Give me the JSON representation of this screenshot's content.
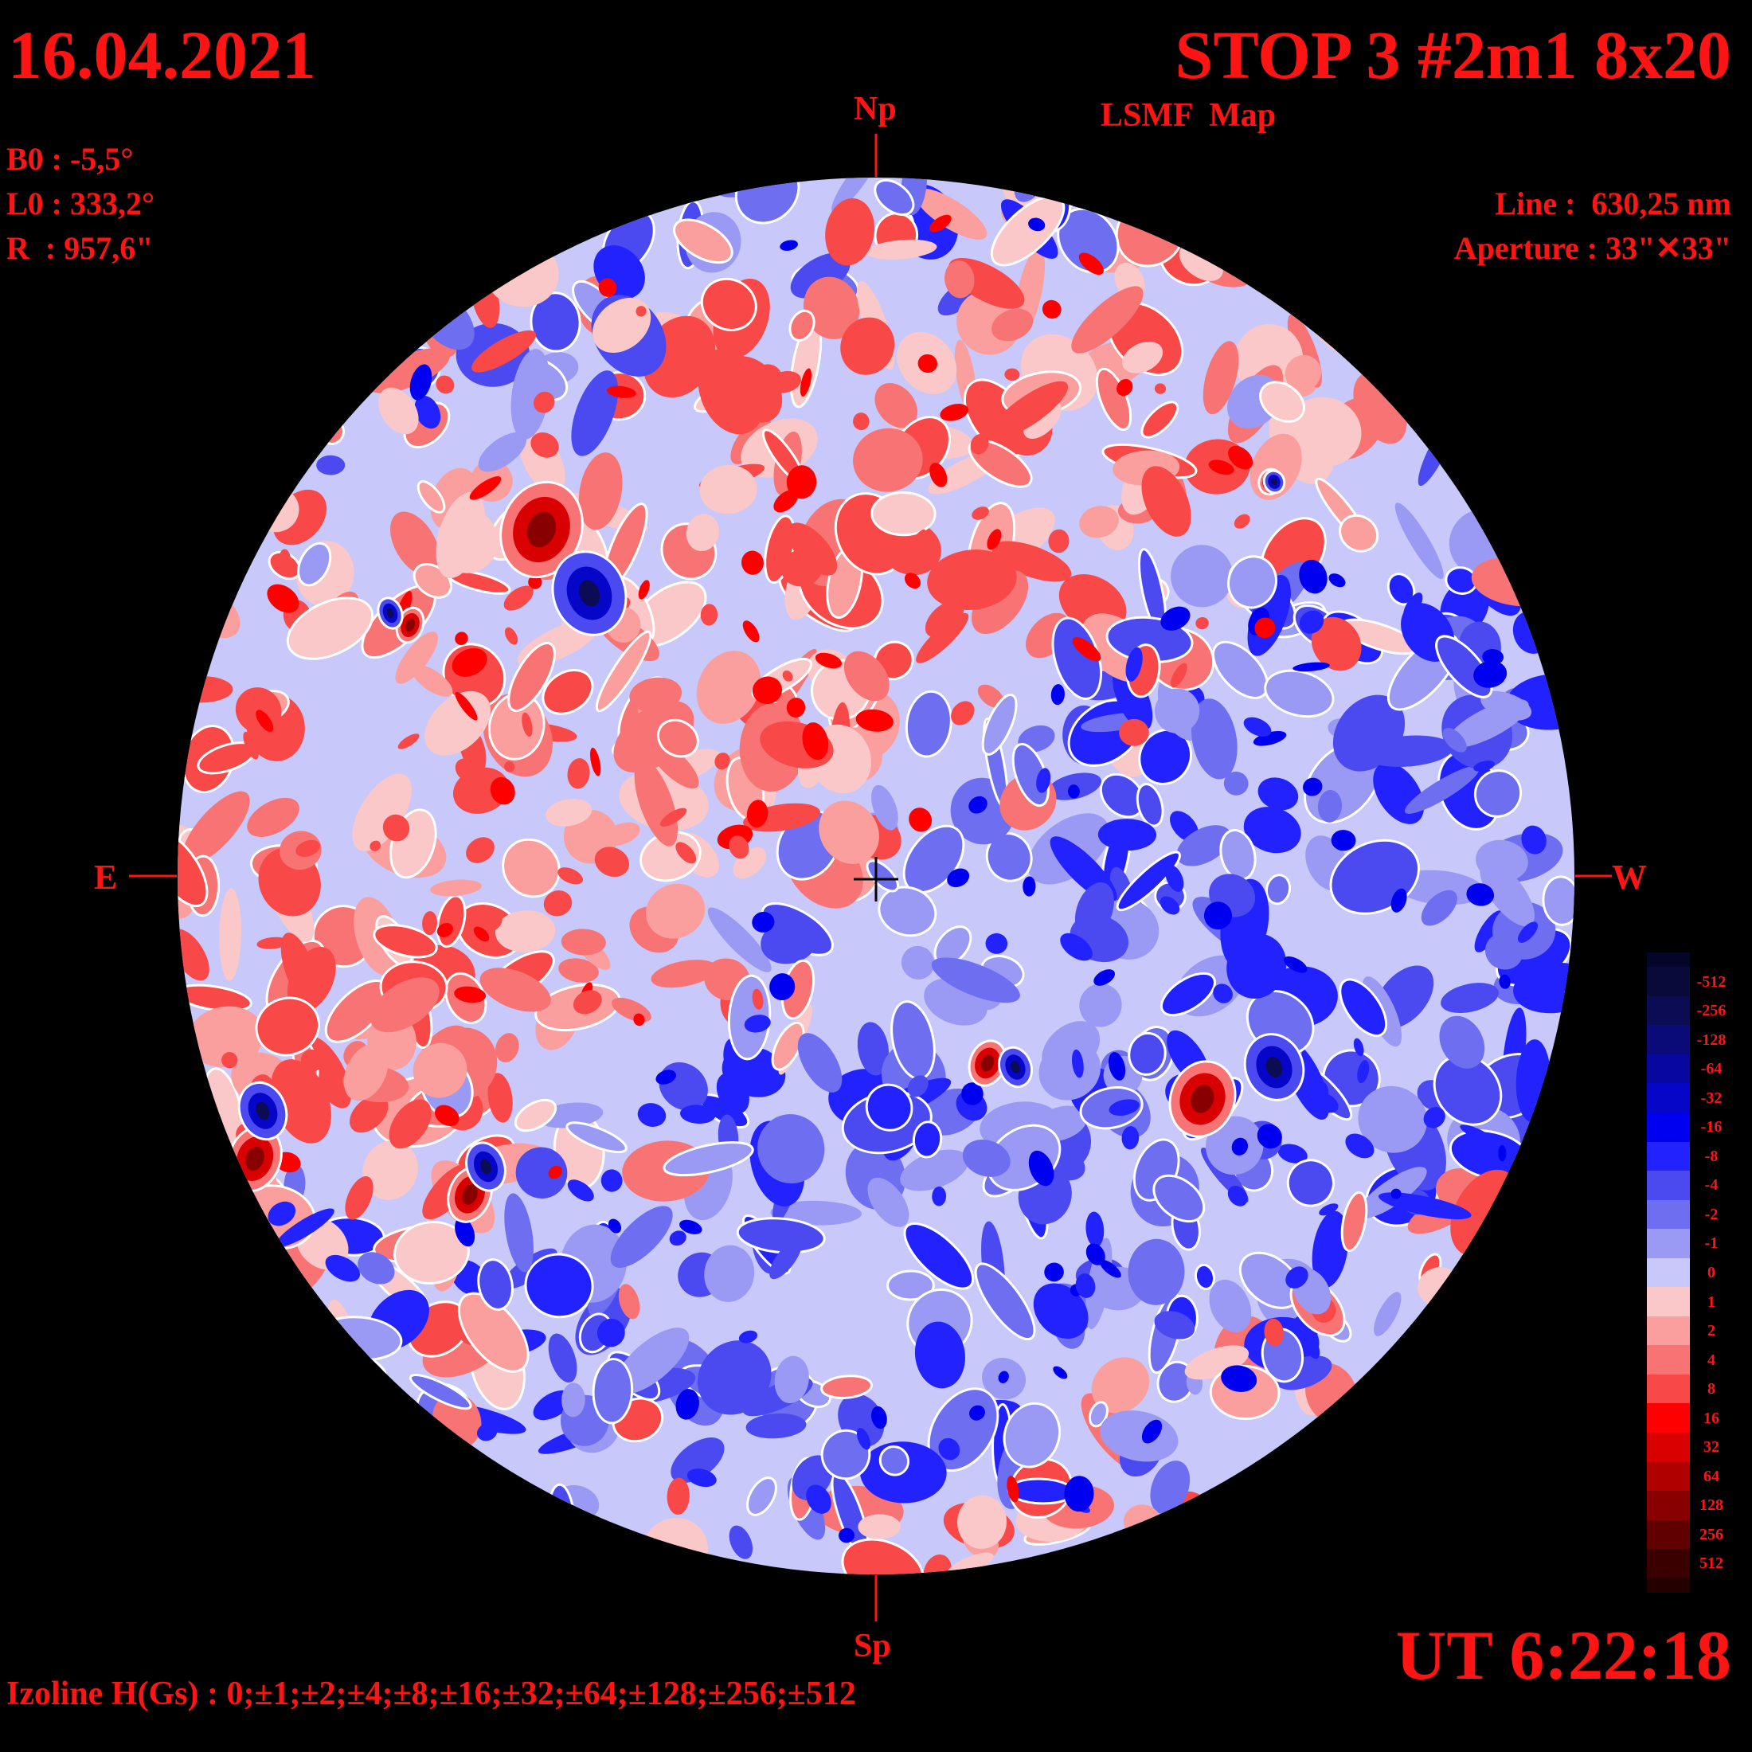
{
  "header": {
    "date": "16.04.2021",
    "title": "STOP 3 #2m1 8x20",
    "subtitle": "LSMF  Map"
  },
  "solar_params": {
    "b0": "B0 : -5,5°",
    "l0": "L0 : 333,2°",
    "r": "R  : 957,6\""
  },
  "instrument": {
    "line": "Line :  630,25 nm",
    "aperture": "Aperture : 33\"✕33\""
  },
  "orientation": {
    "north": "Np",
    "south": "Sp",
    "east": "E",
    "west": "W"
  },
  "time": "UT 6:22:18",
  "isoline_legend": "Izoline H(Gs) : 0;±1;±2;±4;±8;±16;±32;±64;±128;±256;±512",
  "colorbar": {
    "levels": [
      {
        "label": "-512",
        "color": "#0a0a3a"
      },
      {
        "label": "-256",
        "color": "#0c0c55"
      },
      {
        "label": "-128",
        "color": "#0a0a78"
      },
      {
        "label": "-64",
        "color": "#0808a0"
      },
      {
        "label": "-32",
        "color": "#0606c8"
      },
      {
        "label": "-16",
        "color": "#0000f0"
      },
      {
        "label": "-8",
        "color": "#2222ff"
      },
      {
        "label": "-4",
        "color": "#4a4af0"
      },
      {
        "label": "-2",
        "color": "#6e6ef0"
      },
      {
        "label": "-1",
        "color": "#9a9af5"
      },
      {
        "label": "0",
        "color": "#c8c8fa"
      },
      {
        "label": "1",
        "color": "#fac8c8"
      },
      {
        "label": "2",
        "color": "#fa9e9e"
      },
      {
        "label": "4",
        "color": "#f87474"
      },
      {
        "label": "8",
        "color": "#f84848"
      },
      {
        "label": "16",
        "color": "#ff0000"
      },
      {
        "label": "32",
        "color": "#d80000"
      },
      {
        "label": "64",
        "color": "#b00000"
      },
      {
        "label": "128",
        "color": "#880000"
      },
      {
        "label": "256",
        "color": "#600000"
      },
      {
        "label": "512",
        "color": "#3a0000"
      }
    ],
    "extra_bottom_color": "#250000",
    "extra_top_color": "#05052a"
  }
}
